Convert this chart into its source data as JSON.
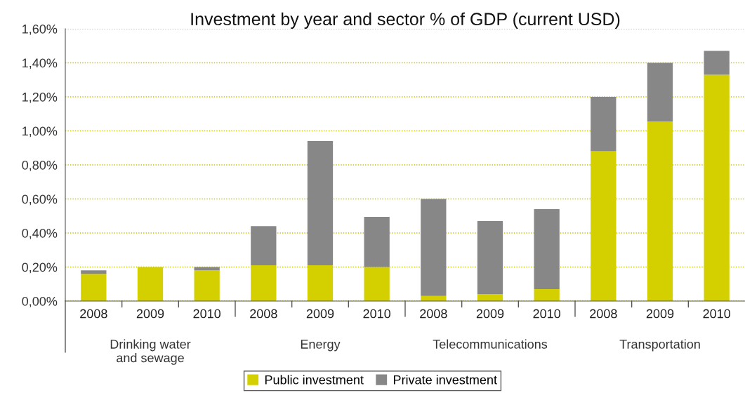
{
  "chart_data": {
    "type": "bar",
    "title": "Investment by year and sector % of GDP (current USD)",
    "categories": [
      "2008",
      "2009",
      "2010",
      "2008",
      "2009",
      "2010",
      "2008",
      "2009",
      "2010",
      "2008",
      "2009",
      "2010"
    ],
    "stacked": true,
    "series": [
      {
        "name": "Public investment",
        "color": "#d4d000",
        "values": [
          0.16,
          0.2,
          0.18,
          0.21,
          0.21,
          0.2,
          0.03,
          0.04,
          0.07,
          0.88,
          1.055,
          1.33
        ]
      },
      {
        "name": "Private investment",
        "color": "#878787",
        "values": [
          0.02,
          0,
          0.02,
          0.23,
          0.73,
          0.295,
          0.57,
          0.43,
          0.47,
          0.32,
          0.345,
          0.14
        ]
      }
    ],
    "annotations": [
      "Drinking water\nand sewage",
      "Energy",
      "Telecommunications",
      "Transportation"
    ],
    "ylim": [
      0,
      1.6
    ],
    "yticks": [
      {
        "value": 0,
        "label": "0,00%"
      },
      {
        "value": 0.2,
        "label": "0,20%"
      },
      {
        "value": 0.4,
        "label": "0,40%"
      },
      {
        "value": 0.6,
        "label": "0,60%"
      },
      {
        "value": 0.8,
        "label": "0,80%"
      },
      {
        "value": 1.0,
        "label": "1,00%"
      },
      {
        "value": 1.2,
        "label": "1,20%"
      },
      {
        "value": 1.4,
        "label": "1,40%"
      },
      {
        "value": 1.6,
        "label": "1,60%"
      }
    ],
    "grid": "y",
    "legend": "bottom"
  }
}
